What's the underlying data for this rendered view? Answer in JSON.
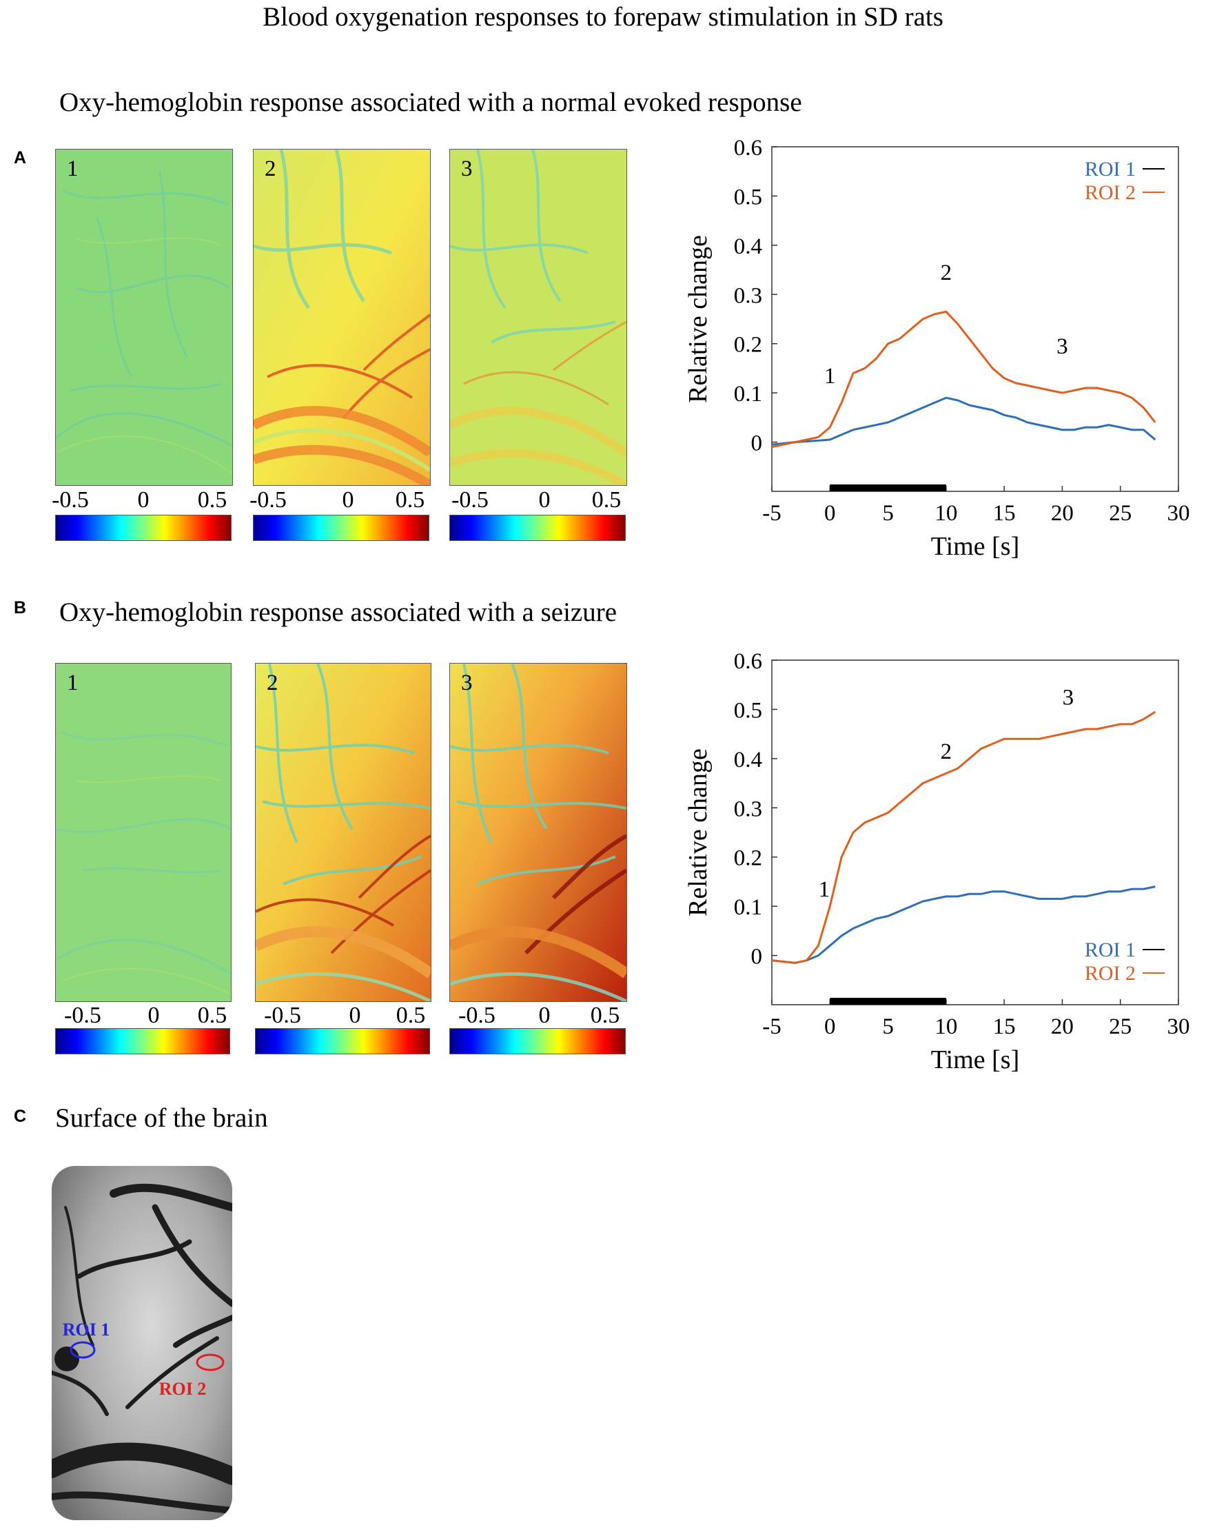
{
  "figure": {
    "title": "Blood oxygenation responses to forepaw stimulation  in  SD rats",
    "panels": {
      "A": {
        "letter": "A",
        "subtitle": "Oxy-hemoglobin  response associated with  a  normal  evoked response"
      },
      "B": {
        "letter": "B",
        "subtitle": "Oxy-hemoglobin  response associated with  a  seizure"
      },
      "C": {
        "letter": "C",
        "subtitle": "Surface of the brain"
      }
    },
    "map_labels": [
      "1",
      "2",
      "3"
    ],
    "colorbar": {
      "ticks": [
        "-0.5",
        "0",
        "0.5"
      ],
      "range": [
        -0.5,
        0.5
      ]
    },
    "roi_labels": {
      "roi1": "ROI 1",
      "roi2": "ROI 2"
    },
    "colors": {
      "roi1": "#2e6fb5",
      "roi2": "#e0601f",
      "roi1_marker": "#2424e8",
      "roi2_marker": "#e02020"
    }
  },
  "chart_data": [
    {
      "type": "line",
      "panel": "A",
      "xlabel": "Time  [s]",
      "ylabel": "Relative  change",
      "xlim": [
        -5,
        30
      ],
      "ylim": [
        -0.1,
        0.6
      ],
      "xticks": [
        -5,
        0,
        5,
        10,
        15,
        20,
        25,
        30
      ],
      "yticks": [
        0,
        0.1,
        0.2,
        0.3,
        0.4,
        0.5,
        0.6
      ],
      "stimulus_bar": [
        0,
        10
      ],
      "legend": [
        "ROI 1",
        "ROI 2"
      ],
      "legend_position": "top-right",
      "series": [
        {
          "name": "ROI 1",
          "color": "#2e6fb5",
          "x": [
            -5,
            -3,
            -1,
            0,
            1,
            2,
            3,
            4,
            5,
            6,
            7,
            8,
            9,
            10,
            11,
            12,
            13,
            14,
            15,
            16,
            17,
            18,
            19,
            20,
            21,
            22,
            23,
            24,
            25,
            26,
            27,
            28
          ],
          "y": [
            -0.005,
            0.0,
            0.003,
            0.005,
            0.015,
            0.025,
            0.03,
            0.035,
            0.04,
            0.05,
            0.06,
            0.07,
            0.08,
            0.09,
            0.085,
            0.075,
            0.07,
            0.065,
            0.055,
            0.05,
            0.04,
            0.035,
            0.03,
            0.025,
            0.025,
            0.03,
            0.03,
            0.035,
            0.03,
            0.025,
            0.025,
            0.005
          ]
        },
        {
          "name": "ROI 2",
          "color": "#e0601f",
          "x": [
            -5,
            -3,
            -1,
            0,
            1,
            2,
            3,
            4,
            5,
            6,
            7,
            8,
            9,
            10,
            11,
            12,
            13,
            14,
            15,
            16,
            17,
            18,
            19,
            20,
            21,
            22,
            23,
            24,
            25,
            26,
            27,
            28
          ],
          "y": [
            -0.01,
            0.0,
            0.01,
            0.03,
            0.08,
            0.14,
            0.15,
            0.17,
            0.2,
            0.21,
            0.23,
            0.25,
            0.26,
            0.265,
            0.24,
            0.21,
            0.18,
            0.15,
            0.13,
            0.12,
            0.115,
            0.11,
            0.105,
            0.1,
            0.105,
            0.11,
            0.11,
            0.105,
            0.1,
            0.09,
            0.07,
            0.04
          ]
        }
      ],
      "annotations": [
        {
          "text": "1",
          "x": 0.0,
          "y": 0.12
        },
        {
          "text": "2",
          "x": 10.0,
          "y": 0.33
        },
        {
          "text": "3",
          "x": 20.0,
          "y": 0.18
        }
      ]
    },
    {
      "type": "line",
      "panel": "B",
      "xlabel": "Time  [s]",
      "ylabel": "Relative  change",
      "xlim": [
        -5,
        30
      ],
      "ylim": [
        -0.1,
        0.6
      ],
      "xticks": [
        -5,
        0,
        5,
        10,
        15,
        20,
        25,
        30
      ],
      "yticks": [
        0,
        0.1,
        0.2,
        0.3,
        0.4,
        0.5,
        0.6
      ],
      "stimulus_bar": [
        0,
        10
      ],
      "legend": [
        "ROI 1",
        "ROI 2"
      ],
      "legend_position": "bottom-right",
      "series": [
        {
          "name": "ROI 1",
          "color": "#2e6fb5",
          "x": [
            -5,
            -3,
            -2,
            -1,
            0,
            1,
            2,
            3,
            4,
            5,
            6,
            7,
            8,
            9,
            10,
            11,
            12,
            13,
            14,
            15,
            16,
            17,
            18,
            19,
            20,
            21,
            22,
            23,
            24,
            25,
            26,
            27,
            28
          ],
          "y": [
            -0.01,
            -0.015,
            -0.01,
            0.0,
            0.02,
            0.04,
            0.055,
            0.065,
            0.075,
            0.08,
            0.09,
            0.1,
            0.11,
            0.115,
            0.12,
            0.12,
            0.125,
            0.125,
            0.13,
            0.13,
            0.125,
            0.12,
            0.115,
            0.115,
            0.115,
            0.12,
            0.12,
            0.125,
            0.13,
            0.13,
            0.135,
            0.135,
            0.14
          ]
        },
        {
          "name": "ROI 2",
          "color": "#e0601f",
          "x": [
            -5,
            -3,
            -2,
            -1,
            0,
            1,
            2,
            3,
            4,
            5,
            6,
            7,
            8,
            9,
            10,
            11,
            12,
            13,
            14,
            15,
            16,
            17,
            18,
            19,
            20,
            21,
            22,
            23,
            24,
            25,
            26,
            27,
            28
          ],
          "y": [
            -0.01,
            -0.015,
            -0.01,
            0.02,
            0.1,
            0.2,
            0.25,
            0.27,
            0.28,
            0.29,
            0.31,
            0.33,
            0.35,
            0.36,
            0.37,
            0.38,
            0.4,
            0.42,
            0.43,
            0.44,
            0.44,
            0.44,
            0.44,
            0.445,
            0.45,
            0.455,
            0.46,
            0.46,
            0.465,
            0.47,
            0.47,
            0.48,
            0.495
          ]
        }
      ],
      "annotations": [
        {
          "text": "1",
          "x": -0.5,
          "y": 0.12
        },
        {
          "text": "2",
          "x": 10.0,
          "y": 0.4
        },
        {
          "text": "3",
          "x": 20.5,
          "y": 0.51
        }
      ]
    }
  ]
}
